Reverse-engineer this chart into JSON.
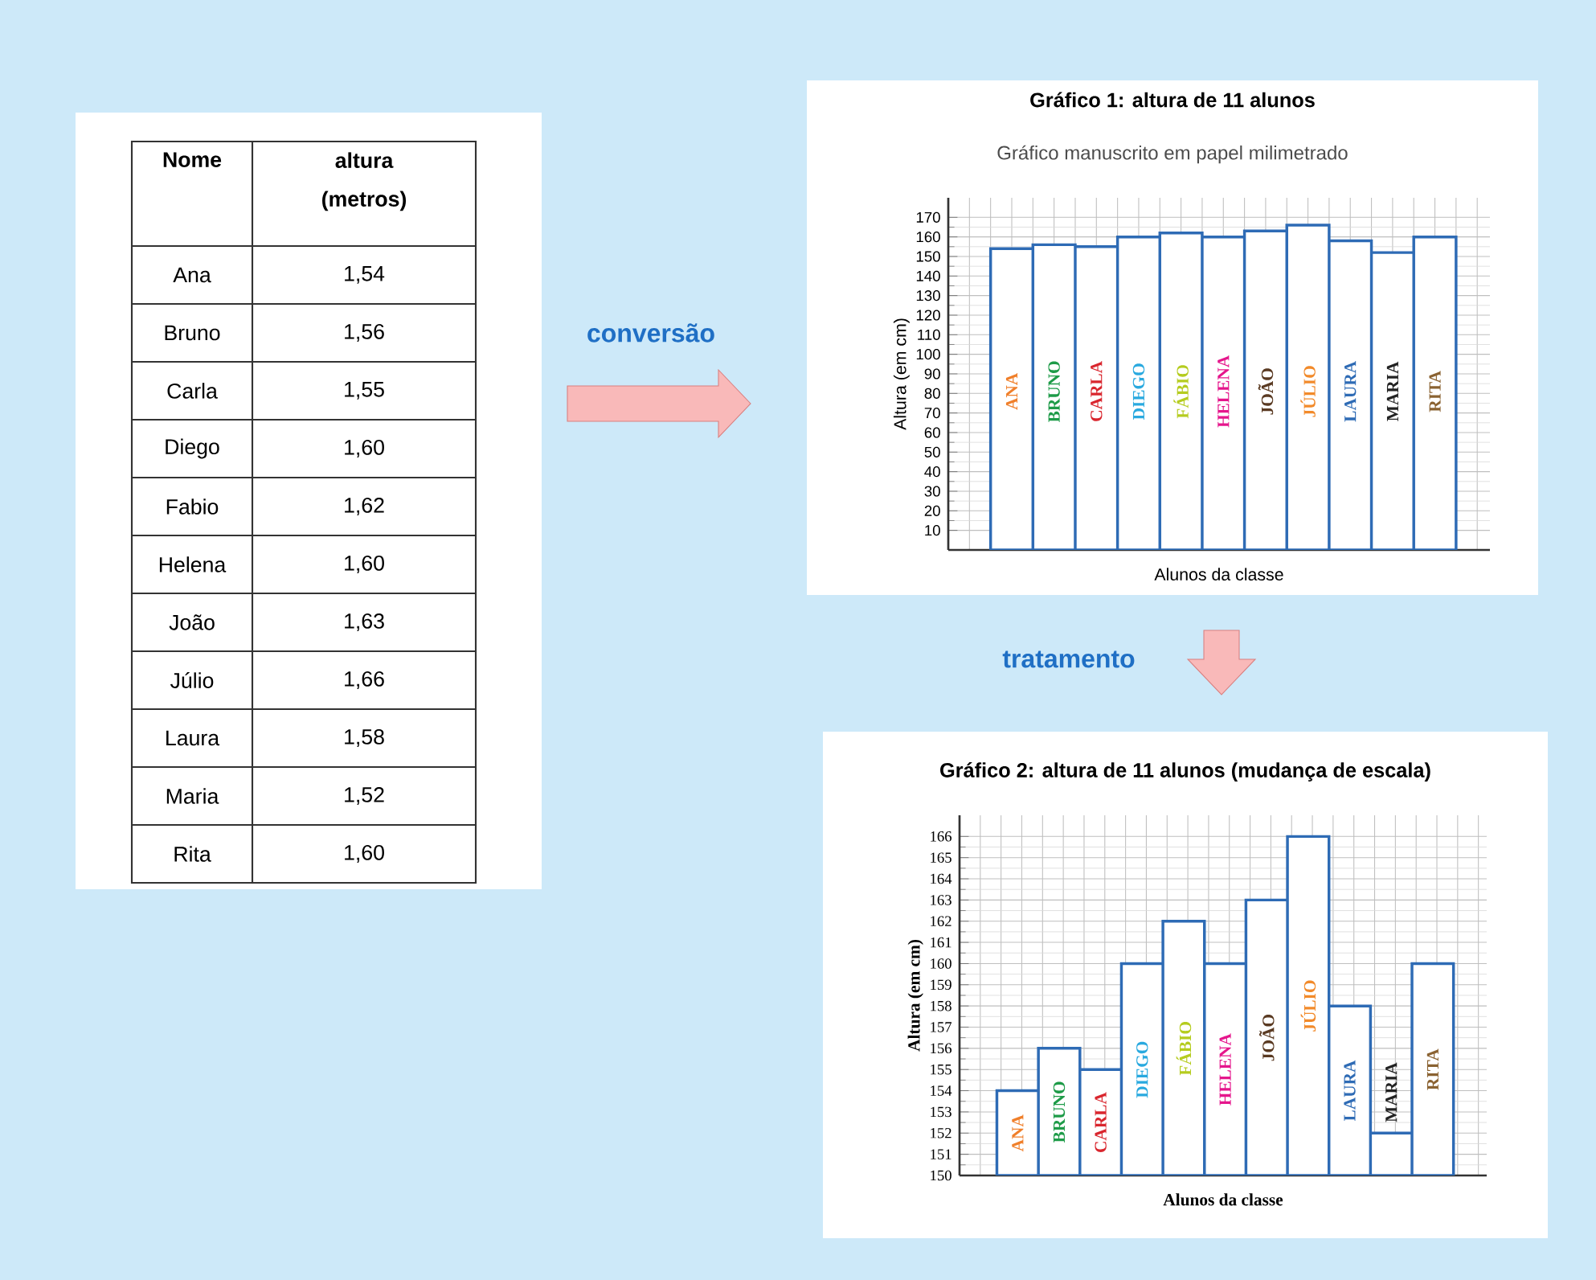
{
  "chart_data": [
    {
      "type": "other",
      "xlabel": "Nome",
      "ylabel": "altura (metros)",
      "categories": [
        "Ana",
        "Bruno",
        "Carla",
        "Diego",
        "Fabio",
        "Helena",
        "João",
        "Júlio",
        "Laura",
        "Maria",
        "Rita"
      ],
      "values": [
        1.54,
        1.56,
        1.55,
        1.6,
        1.62,
        1.6,
        1.63,
        1.66,
        1.58,
        1.52,
        1.6
      ],
      "data_labels": true,
      "value_labels": [
        "1,54",
        "1,56",
        "1,55",
        "1,60",
        "1,62",
        "1,60",
        "1,63",
        "1,66",
        "1,58",
        "1,52",
        "1,60"
      ]
    },
    {
      "type": "bar",
      "title": "Gráfico 1: altura de 11 alunos",
      "subtitle": "Gráfico manuscrito em papel milimetrado",
      "xlabel": "Alunos da classe",
      "ylabel": "Altura (em cm)",
      "categories": [
        "ANA",
        "BRUNO",
        "CARLA",
        "DIEGO",
        "FÁBIO",
        "HELENA",
        "JOÃO",
        "JÚLIO",
        "LAURA",
        "MARIA",
        "RITA"
      ],
      "values": [
        154,
        156,
        155,
        160,
        162,
        160,
        163,
        166,
        158,
        152,
        160
      ],
      "color": "#ffffff",
      "ylim": [
        0,
        180
      ],
      "yticks": [
        10,
        20,
        30,
        40,
        50,
        60,
        70,
        80,
        90,
        100,
        110,
        120,
        130,
        140,
        150,
        160,
        170
      ],
      "grid": true,
      "annotations": [
        "conversão"
      ]
    },
    {
      "type": "bar",
      "title": "Gráfico 2: altura de 11 alunos (mudança de escala)",
      "xlabel": "Alunos da classe",
      "ylabel": "Altura (em cm)",
      "categories": [
        "ANA",
        "BRUNO",
        "CARLA",
        "DIEGO",
        "FÁBIO",
        "HELENA",
        "JOÃO",
        "JÚLIO",
        "LAURA",
        "MARIA",
        "RITA"
      ],
      "values": [
        154,
        156,
        155,
        160,
        162,
        160,
        163,
        166,
        158,
        152,
        160
      ],
      "color": "#ffffff",
      "ylim": [
        150,
        167
      ],
      "yticks": [
        150,
        151,
        152,
        153,
        154,
        155,
        156,
        157,
        158,
        159,
        160,
        161,
        162,
        163,
        164,
        165,
        166
      ],
      "grid": true,
      "annotations": [
        "tratamento"
      ]
    }
  ]
}
